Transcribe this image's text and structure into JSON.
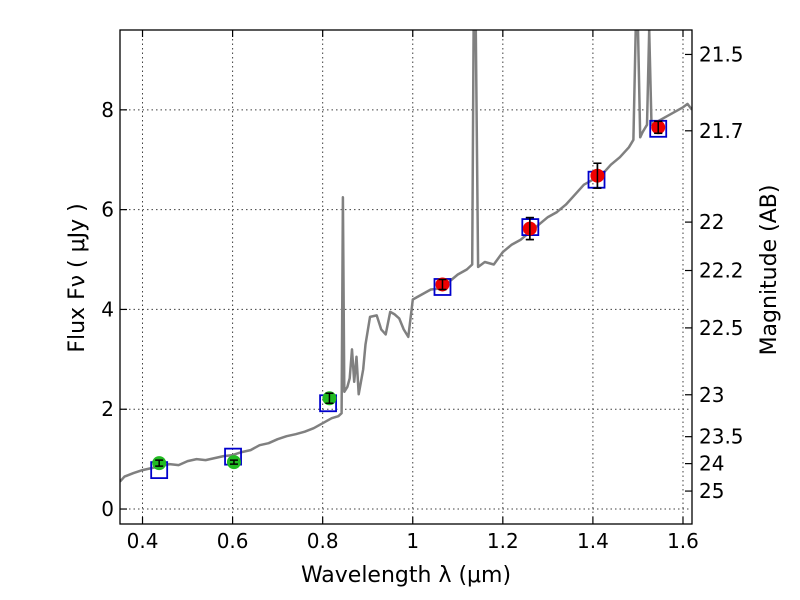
{
  "chart_data": {
    "type": "line",
    "xlabel": "Wavelength  λ (μm)",
    "ylabel": "Flux  Fν  ( μJy )",
    "ylabel_right": "Magnitude (AB)",
    "xlim": [
      0.35,
      1.62
    ],
    "ylim": [
      -0.3,
      9.6
    ],
    "grid": true,
    "x_ticks": [
      0.4,
      0.6,
      0.8,
      1.0,
      1.2,
      1.4,
      1.6
    ],
    "x_tick_labels": [
      "0.4",
      "0.6",
      "0.8",
      "1",
      "1.2",
      "1.4",
      "1.6"
    ],
    "y_ticks": [
      0,
      2,
      4,
      6,
      8
    ],
    "y_tick_labels": [
      "0",
      "2",
      "4",
      "6",
      "8"
    ],
    "right_axis_ticks": [
      {
        "label": "21.5",
        "flux": 9.11
      },
      {
        "label": "21.7",
        "flux": 7.58
      },
      {
        "label": "22",
        "flux": 5.75
      },
      {
        "label": "22.2",
        "flux": 4.78
      },
      {
        "label": "22.5",
        "flux": 3.63
      },
      {
        "label": "23",
        "flux": 2.29
      },
      {
        "label": "23.5",
        "flux": 1.45
      },
      {
        "label": "24",
        "flux": 0.91
      },
      {
        "label": "25",
        "flux": 0.36
      }
    ],
    "series": [
      {
        "name": "model spectrum",
        "color": "#808080",
        "style": "line",
        "points": [
          [
            0.35,
            0.55
          ],
          [
            0.36,
            0.65
          ],
          [
            0.38,
            0.72
          ],
          [
            0.4,
            0.78
          ],
          [
            0.42,
            0.82
          ],
          [
            0.44,
            0.86
          ],
          [
            0.46,
            0.9
          ],
          [
            0.48,
            0.88
          ],
          [
            0.5,
            0.96
          ],
          [
            0.52,
            1.0
          ],
          [
            0.54,
            0.98
          ],
          [
            0.56,
            1.02
          ],
          [
            0.58,
            1.06
          ],
          [
            0.6,
            1.08
          ],
          [
            0.62,
            1.14
          ],
          [
            0.64,
            1.18
          ],
          [
            0.66,
            1.28
          ],
          [
            0.68,
            1.32
          ],
          [
            0.7,
            1.4
          ],
          [
            0.72,
            1.46
          ],
          [
            0.74,
            1.5
          ],
          [
            0.76,
            1.55
          ],
          [
            0.78,
            1.62
          ],
          [
            0.8,
            1.72
          ],
          [
            0.82,
            1.82
          ],
          [
            0.835,
            1.86
          ],
          [
            0.842,
            1.92
          ],
          [
            0.845,
            6.25
          ],
          [
            0.848,
            2.35
          ],
          [
            0.855,
            2.45
          ],
          [
            0.86,
            2.62
          ],
          [
            0.865,
            3.2
          ],
          [
            0.87,
            2.55
          ],
          [
            0.875,
            3.05
          ],
          [
            0.88,
            2.3
          ],
          [
            0.89,
            2.8
          ],
          [
            0.895,
            3.3
          ],
          [
            0.905,
            3.85
          ],
          [
            0.92,
            3.88
          ],
          [
            0.93,
            3.6
          ],
          [
            0.94,
            3.5
          ],
          [
            0.95,
            3.95
          ],
          [
            0.96,
            3.9
          ],
          [
            0.97,
            3.82
          ],
          [
            0.98,
            3.6
          ],
          [
            0.99,
            3.45
          ],
          [
            1.0,
            4.2
          ],
          [
            1.02,
            4.3
          ],
          [
            1.04,
            4.4
          ],
          [
            1.06,
            4.42
          ],
          [
            1.08,
            4.55
          ],
          [
            1.1,
            4.7
          ],
          [
            1.12,
            4.8
          ],
          [
            1.132,
            4.9
          ],
          [
            1.135,
            9.6
          ],
          [
            1.14,
            9.6
          ],
          [
            1.145,
            4.85
          ],
          [
            1.16,
            4.95
          ],
          [
            1.18,
            4.9
          ],
          [
            1.2,
            5.15
          ],
          [
            1.22,
            5.3
          ],
          [
            1.24,
            5.4
          ],
          [
            1.26,
            5.55
          ],
          [
            1.28,
            5.7
          ],
          [
            1.3,
            5.85
          ],
          [
            1.32,
            5.95
          ],
          [
            1.34,
            6.1
          ],
          [
            1.36,
            6.3
          ],
          [
            1.38,
            6.5
          ],
          [
            1.4,
            6.6
          ],
          [
            1.42,
            6.7
          ],
          [
            1.44,
            6.9
          ],
          [
            1.46,
            7.05
          ],
          [
            1.48,
            7.25
          ],
          [
            1.49,
            7.4
          ],
          [
            1.495,
            9.6
          ],
          [
            1.5,
            9.6
          ],
          [
            1.505,
            7.45
          ],
          [
            1.51,
            7.55
          ],
          [
            1.52,
            7.7
          ],
          [
            1.525,
            9.6
          ],
          [
            1.53,
            7.7
          ],
          [
            1.54,
            7.75
          ],
          [
            1.56,
            7.85
          ],
          [
            1.58,
            7.95
          ],
          [
            1.6,
            8.05
          ],
          [
            1.61,
            8.12
          ],
          [
            1.62,
            8.0
          ]
        ]
      },
      {
        "name": "model photometry",
        "color": "#0000cc",
        "style": "open-square",
        "points": [
          [
            0.437,
            0.78
          ],
          [
            0.601,
            1.05
          ],
          [
            0.812,
            2.12
          ],
          [
            1.066,
            4.45
          ],
          [
            1.261,
            5.65
          ],
          [
            1.408,
            6.6
          ],
          [
            1.545,
            7.62
          ]
        ]
      },
      {
        "name": "observed optical",
        "color": "#22bb22",
        "style": "circle-errorbar",
        "points": [
          [
            0.437,
            0.92,
            0.06
          ],
          [
            0.603,
            0.94,
            0.04
          ],
          [
            0.815,
            2.22,
            0.1
          ]
        ]
      },
      {
        "name": "observed near-IR",
        "color": "#ee0000",
        "style": "circle-errorbar",
        "points": [
          [
            1.066,
            4.5,
            0.1
          ],
          [
            1.26,
            5.62,
            0.22
          ],
          [
            1.41,
            6.68,
            0.25
          ],
          [
            1.545,
            7.65,
            0.12
          ]
        ]
      }
    ]
  }
}
